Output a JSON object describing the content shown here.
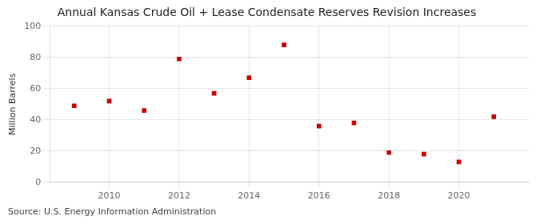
{
  "chart_data": {
    "type": "scatter",
    "title": "Annual Kansas Crude Oil + Lease Condensate Reserves Revision Increases",
    "ylabel": "Million Barrels",
    "annotations": [
      "Source: U.S. Energy Information Administration"
    ],
    "x": [
      2009,
      2010,
      2011,
      2012,
      2013,
      2014,
      2015,
      2016,
      2017,
      2018,
      2019,
      2020,
      2021
    ],
    "values": [
      49,
      52,
      46,
      79,
      57,
      67,
      88,
      36,
      38,
      19,
      18,
      13,
      42
    ],
    "color": "#cc0000",
    "marker": "square",
    "xlim": [
      2008.3,
      2022.0
    ],
    "xticks": [
      2010,
      2012,
      2014,
      2016,
      2018,
      2020
    ],
    "ylim": [
      0,
      100
    ],
    "yticks": [
      0,
      20,
      40,
      60,
      80,
      100
    ],
    "grid": true
  }
}
